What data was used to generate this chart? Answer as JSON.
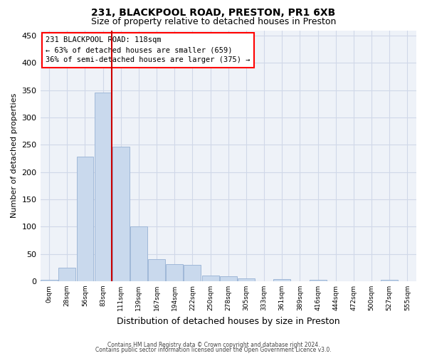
{
  "title1": "231, BLACKPOOL ROAD, PRESTON, PR1 6XB",
  "title2": "Size of property relative to detached houses in Preston",
  "xlabel": "Distribution of detached houses by size in Preston",
  "ylabel": "Number of detached properties",
  "bar_color": "#c9d9ed",
  "bar_edgecolor": "#a0b8d8",
  "background_color": "#eef2f8",
  "grid_color": "#d0d8e8",
  "vline_color": "#cc0000",
  "annotation_text": "231 BLACKPOOL ROAD: 118sqm\n← 63% of detached houses are smaller (659)\n36% of semi-detached houses are larger (375) →",
  "bin_labels": [
    "0sqm",
    "28sqm",
    "56sqm",
    "83sqm",
    "111sqm",
    "139sqm",
    "167sqm",
    "194sqm",
    "222sqm",
    "250sqm",
    "278sqm",
    "305sqm",
    "333sqm",
    "361sqm",
    "389sqm",
    "416sqm",
    "444sqm",
    "472sqm",
    "500sqm",
    "527sqm",
    "555sqm"
  ],
  "bar_heights": [
    3,
    25,
    228,
    346,
    247,
    101,
    41,
    31,
    30,
    11,
    9,
    5,
    0,
    4,
    0,
    3,
    0,
    0,
    0,
    2,
    0
  ],
  "ylim": [
    0,
    460
  ],
  "yticks": [
    0,
    50,
    100,
    150,
    200,
    250,
    300,
    350,
    400,
    450
  ],
  "vline_position": 3.5,
  "footer1": "Contains HM Land Registry data © Crown copyright and database right 2024.",
  "footer2": "Contains public sector information licensed under the Open Government Licence v3.0."
}
